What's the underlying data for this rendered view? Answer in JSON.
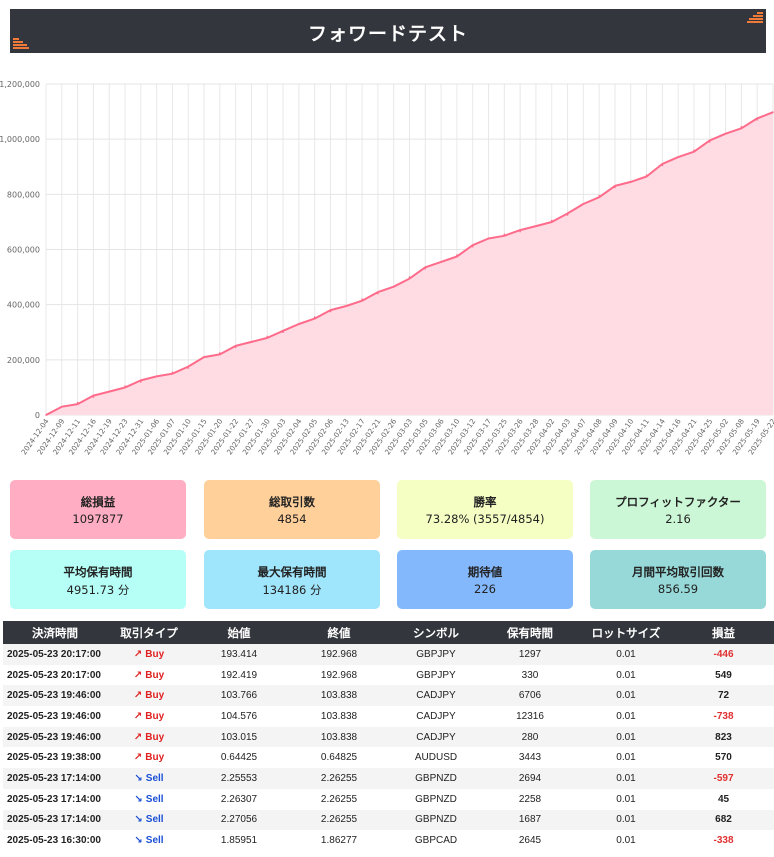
{
  "page": {
    "title": "フォワードテスト"
  },
  "colors": {
    "banner_bg": "#33363c",
    "banner_accent": "#f07a38",
    "line": "#ff6b8a",
    "fill": "#ffdce4",
    "buy": "#e02020",
    "sell": "#1a4fd6",
    "negative": "#e03030"
  },
  "chart_data": {
    "type": "area",
    "title": "",
    "xlabel": "",
    "ylabel": "",
    "ylim": [
      0,
      1200000
    ],
    "yticks": [
      0,
      200000,
      400000,
      600000,
      800000,
      1000000,
      1200000
    ],
    "ytick_labels": [
      "0",
      "200,000",
      "400,000",
      "600,000",
      "800,000",
      "1,000,000",
      "1,200,000"
    ],
    "grid": true,
    "xticks": [
      "2024-12-04",
      "2024-12-09",
      "2024-12-11",
      "2024-12-16",
      "2024-12-19",
      "2024-12-23",
      "2024-12-31",
      "2025-01-06",
      "2025-01-07",
      "2025-01-10",
      "2025-01-15",
      "2025-01-20",
      "2025-01-22",
      "2025-01-27",
      "2025-01-30",
      "2025-02-03",
      "2025-02-04",
      "2025-02-05",
      "2025-02-06",
      "2025-02-13",
      "2025-02-17",
      "2025-02-21",
      "2025-02-26",
      "2025-03-03",
      "2025-03-05",
      "2025-03-06",
      "2025-03-10",
      "2025-03-12",
      "2025-03-17",
      "2025-03-25",
      "2025-03-26",
      "2025-03-28",
      "2025-04-02",
      "2025-04-03",
      "2025-04-07",
      "2025-04-08",
      "2025-04-09",
      "2025-04-10",
      "2025-04-11",
      "2025-04-14",
      "2025-04-16",
      "2025-04-21",
      "2025-04-25",
      "2025-05-02",
      "2025-05-08",
      "2025-05-19",
      "2025-05-22"
    ],
    "series": [
      {
        "values": [
          0,
          30000,
          45000,
          65000,
          85000,
          105000,
          120000,
          140000,
          155000,
          170000,
          210000,
          225000,
          245000,
          265000,
          285000,
          300000,
          330000,
          355000,
          375000,
          395000,
          420000,
          440000,
          465000,
          500000,
          530000,
          555000,
          580000,
          610000,
          640000,
          655000,
          665000,
          685000,
          705000,
          725000,
          765000,
          795000,
          825000,
          845000,
          870000,
          905000,
          935000,
          960000,
          990000,
          1020000,
          1045000,
          1070000,
          1097877
        ]
      }
    ]
  },
  "stats": [
    {
      "label": "総損益",
      "value": "1097877",
      "color": "#ffadc2"
    },
    {
      "label": "総取引数",
      "value": "4854",
      "color": "#ffd09a"
    },
    {
      "label": "勝率",
      "value": "73.28% (3557/4854)",
      "color": "#f5ffc4"
    },
    {
      "label": "プロフィットファクター",
      "value": "2.16",
      "color": "#ccf7d6"
    },
    {
      "label": "平均保有時間",
      "value": "4951.73 分",
      "color": "#b5fff7"
    },
    {
      "label": "最大保有時間",
      "value": "134186 分",
      "color": "#9fe5fb"
    },
    {
      "label": "期待値",
      "value": "226",
      "color": "#84b8fd"
    },
    {
      "label": "月間平均取引回数",
      "value": "856.59",
      "color": "#97d9d8"
    }
  ],
  "table": {
    "headers": [
      "決済時間",
      "取引タイプ",
      "始値",
      "終値",
      "シンボル",
      "保有時間",
      "ロットサイズ",
      "損益"
    ],
    "rows": [
      {
        "time": "2025-05-23 20:17:00",
        "type": "Buy",
        "arrow": "↗",
        "open": "193.414",
        "close": "192.968",
        "symbol": "GBPJPY",
        "hold": "1297",
        "lot": "0.01",
        "pl": "-446"
      },
      {
        "time": "2025-05-23 20:17:00",
        "type": "Buy",
        "arrow": "↗",
        "open": "192.419",
        "close": "192.968",
        "symbol": "GBPJPY",
        "hold": "330",
        "lot": "0.01",
        "pl": "549"
      },
      {
        "time": "2025-05-23 19:46:00",
        "type": "Buy",
        "arrow": "↗",
        "open": "103.766",
        "close": "103.838",
        "symbol": "CADJPY",
        "hold": "6706",
        "lot": "0.01",
        "pl": "72"
      },
      {
        "time": "2025-05-23 19:46:00",
        "type": "Buy",
        "arrow": "↗",
        "open": "104.576",
        "close": "103.838",
        "symbol": "CADJPY",
        "hold": "12316",
        "lot": "0.01",
        "pl": "-738"
      },
      {
        "time": "2025-05-23 19:46:00",
        "type": "Buy",
        "arrow": "↗",
        "open": "103.015",
        "close": "103.838",
        "symbol": "CADJPY",
        "hold": "280",
        "lot": "0.01",
        "pl": "823"
      },
      {
        "time": "2025-05-23 19:38:00",
        "type": "Buy",
        "arrow": "↗",
        "open": "0.64425",
        "close": "0.64825",
        "symbol": "AUDUSD",
        "hold": "3443",
        "lot": "0.01",
        "pl": "570"
      },
      {
        "time": "2025-05-23 17:14:00",
        "type": "Sell",
        "arrow": "↘",
        "open": "2.25553",
        "close": "2.26255",
        "symbol": "GBPNZD",
        "hold": "2694",
        "lot": "0.01",
        "pl": "-597"
      },
      {
        "time": "2025-05-23 17:14:00",
        "type": "Sell",
        "arrow": "↘",
        "open": "2.26307",
        "close": "2.26255",
        "symbol": "GBPNZD",
        "hold": "2258",
        "lot": "0.01",
        "pl": "45"
      },
      {
        "time": "2025-05-23 17:14:00",
        "type": "Sell",
        "arrow": "↘",
        "open": "2.27056",
        "close": "2.26255",
        "symbol": "GBPNZD",
        "hold": "1687",
        "lot": "0.01",
        "pl": "682"
      },
      {
        "time": "2025-05-23 16:30:00",
        "type": "Sell",
        "arrow": "↘",
        "open": "1.85951",
        "close": "1.86277",
        "symbol": "GBPCAD",
        "hold": "2645",
        "lot": "0.01",
        "pl": "-338"
      }
    ]
  }
}
